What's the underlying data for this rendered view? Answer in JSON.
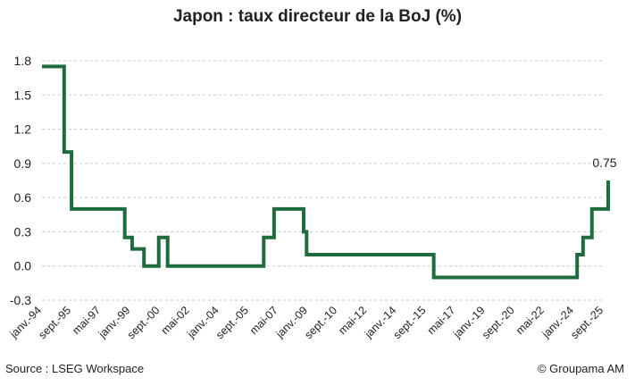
{
  "page": {
    "source": "Source : LSEG Workspace",
    "copyright": "© Groupama AM"
  },
  "chart_data": {
    "type": "line",
    "title": "Japon : taux directeur de la BoJ (%)",
    "xlabel": "",
    "ylabel": "",
    "ylim": [
      -0.3,
      1.8
    ],
    "y_ticks": [
      -0.3,
      0.0,
      0.3,
      0.6,
      0.9,
      1.2,
      1.5,
      1.8
    ],
    "y_tick_labels": [
      "-0.3",
      "0.0",
      "0.3",
      "0.6",
      "0.9",
      "1.2",
      "1.5",
      "1.8"
    ],
    "x_range": [
      "1994-01",
      "2025-09"
    ],
    "x_tick_labels": [
      {
        "date": "1994-01",
        "label": "janv.-94"
      },
      {
        "date": "1995-09",
        "label": "sept.-95"
      },
      {
        "date": "1997-05",
        "label": "mai-97"
      },
      {
        "date": "1999-01",
        "label": "janv.-99"
      },
      {
        "date": "2000-09",
        "label": "sept.-00"
      },
      {
        "date": "2002-05",
        "label": "mai-02"
      },
      {
        "date": "2004-01",
        "label": "janv.-04"
      },
      {
        "date": "2005-09",
        "label": "sept.-05"
      },
      {
        "date": "2007-05",
        "label": "mai-07"
      },
      {
        "date": "2009-01",
        "label": "janv.-09"
      },
      {
        "date": "2010-09",
        "label": "sept.-10"
      },
      {
        "date": "2012-05",
        "label": "mai-12"
      },
      {
        "date": "2014-01",
        "label": "janv.-14"
      },
      {
        "date": "2015-09",
        "label": "sept.-15"
      },
      {
        "date": "2017-05",
        "label": "mai-17"
      },
      {
        "date": "2019-01",
        "label": "janv.-19"
      },
      {
        "date": "2020-09",
        "label": "sept.-20"
      },
      {
        "date": "2022-05",
        "label": "mai-22"
      },
      {
        "date": "2024-01",
        "label": "janv.-24"
      },
      {
        "date": "2025-09",
        "label": "sept.-25"
      }
    ],
    "grid": true,
    "legend": "none",
    "series": [
      {
        "color": "#1e6b3e",
        "step": true,
        "points": [
          {
            "x": "1994-01",
            "y": 1.75
          },
          {
            "x": "1995-04",
            "y": 1.0
          },
          {
            "x": "1995-09",
            "y": 0.5
          },
          {
            "x": "1998-09",
            "y": 0.25
          },
          {
            "x": "1999-02",
            "y": 0.15
          },
          {
            "x": "1999-10",
            "y": 0.0
          },
          {
            "x": "2000-08",
            "y": 0.25
          },
          {
            "x": "2001-02",
            "y": 0.0
          },
          {
            "x": "2006-07",
            "y": 0.25
          },
          {
            "x": "2007-02",
            "y": 0.5
          },
          {
            "x": "2008-10",
            "y": 0.3
          },
          {
            "x": "2008-12",
            "y": 0.1
          },
          {
            "x": "2016-02",
            "y": -0.1
          },
          {
            "x": "2024-03",
            "y": 0.1
          },
          {
            "x": "2024-07",
            "y": 0.25
          },
          {
            "x": "2025-01",
            "y": 0.5
          },
          {
            "x": "2025-12",
            "y": 0.75
          }
        ],
        "end_x": "2025-12",
        "end_label": "0.75"
      }
    ]
  }
}
